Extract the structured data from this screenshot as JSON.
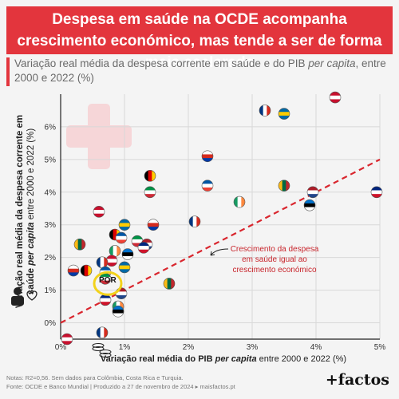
{
  "title": "Despesa em saúde na OCDE acompanha crescimento económico, mas tende a ser de forma mais acelerada",
  "subtitle_pre": "Variação real média da despesa corrente em saúde e do PIB ",
  "subtitle_em": "per capita",
  "subtitle_post": ", entre 2000 e 2022 (%)",
  "ylabel_pre": "Variação real média da despesa corrente em saúde ",
  "ylabel_em": "per capita",
  "ylabel_post": " entre 2000 e 2022 (%)",
  "xlabel_pre": "Variação real média do PIB ",
  "xlabel_em": "per capita",
  "xlabel_post": " entre 2000 e 2022 (%)",
  "annotation": "Crescimento da despesa em saúde igual ao crescimento económico",
  "highlight_label": "POR",
  "notes_line1": "Notas: R2=0,56. Sem dados para Colômbia, Costa Rica e Turquia.",
  "notes_line2": "Fonte: OCDE e Banco Mundial | Produzido a 27 de novembro de 2024 ▸ maisfactos.pt",
  "brand": "+factos",
  "colors": {
    "accent": "#e3353d",
    "line": "#d9262e",
    "highlight": "#f2d21b"
  },
  "chart_data": {
    "type": "scatter",
    "xlim": [
      0,
      5
    ],
    "ylim": [
      -0.5,
      7
    ],
    "x_ticks": [
      "0%",
      "1%",
      "2%",
      "3%",
      "4%",
      "5%"
    ],
    "y_ticks": [
      "0%",
      "1%",
      "2%",
      "3%",
      "4%",
      "5%",
      "6%"
    ],
    "grid": true,
    "reference_line": "y = x",
    "points": [
      {
        "x": 4.3,
        "y": 6.9
      },
      {
        "x": 3.2,
        "y": 6.5
      },
      {
        "x": 3.5,
        "y": 6.4
      },
      {
        "x": 2.3,
        "y": 5.1
      },
      {
        "x": 1.4,
        "y": 4.5
      },
      {
        "x": 2.3,
        "y": 4.2
      },
      {
        "x": 1.4,
        "y": 4.0
      },
      {
        "x": 3.5,
        "y": 4.2
      },
      {
        "x": 3.95,
        "y": 4.0
      },
      {
        "x": 4.95,
        "y": 4.0
      },
      {
        "x": 2.8,
        "y": 3.7
      },
      {
        "x": 3.9,
        "y": 3.6
      },
      {
        "x": 0.6,
        "y": 3.4
      },
      {
        "x": 2.1,
        "y": 3.1
      },
      {
        "x": 1.0,
        "y": 3.0
      },
      {
        "x": 1.45,
        "y": 3.0
      },
      {
        "x": 0.85,
        "y": 2.7
      },
      {
        "x": 0.95,
        "y": 2.6
      },
      {
        "x": 1.2,
        "y": 2.5
      },
      {
        "x": 0.3,
        "y": 2.4
      },
      {
        "x": 1.35,
        "y": 2.4
      },
      {
        "x": 1.3,
        "y": 2.3
      },
      {
        "x": 0.85,
        "y": 2.2
      },
      {
        "x": 1.05,
        "y": 2.1
      },
      {
        "x": 0.8,
        "y": 1.9
      },
      {
        "x": 0.65,
        "y": 1.85
      },
      {
        "x": 1.0,
        "y": 1.7
      },
      {
        "x": 0.2,
        "y": 1.6
      },
      {
        "x": 0.4,
        "y": 1.6
      },
      {
        "x": 0.7,
        "y": 1.55
      },
      {
        "x": 0.7,
        "y": 1.35
      },
      {
        "x": 1.7,
        "y": 1.2
      },
      {
        "x": 0.95,
        "y": 0.9
      },
      {
        "x": 0.7,
        "y": 0.7
      },
      {
        "x": 0.9,
        "y": 0.5
      },
      {
        "x": 0.9,
        "y": 0.35
      },
      {
        "x": 0.1,
        "y": -0.5
      },
      {
        "x": 0.65,
        "y": -0.3
      }
    ]
  }
}
